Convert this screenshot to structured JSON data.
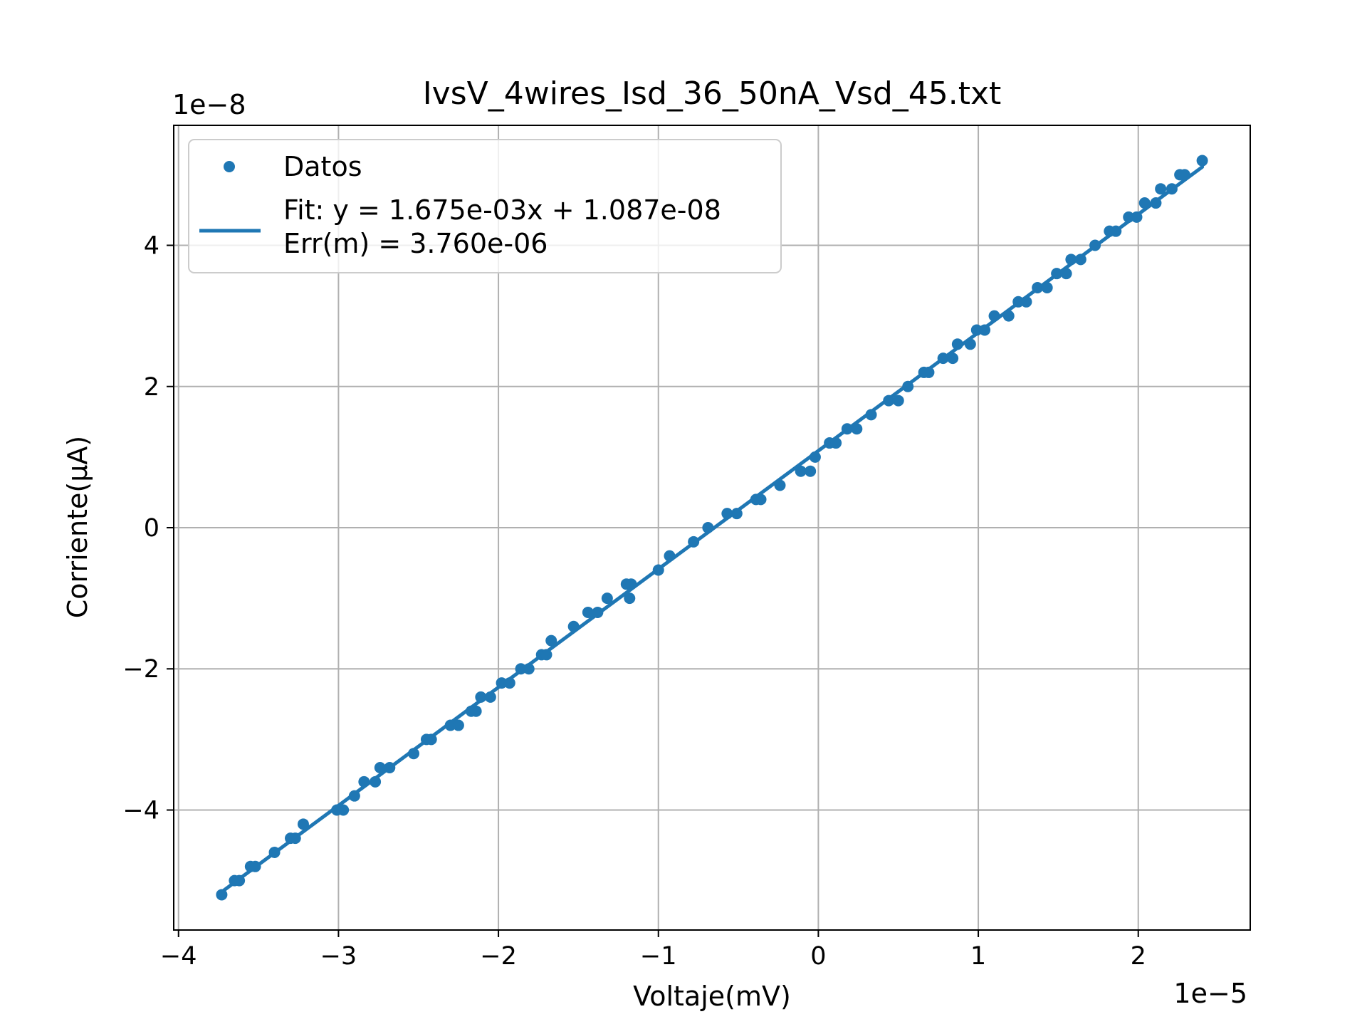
{
  "chart_data": {
    "type": "scatter",
    "title": "IvsV_4wires_Isd_36_50nA_Vsd_45.txt",
    "xlabel": "Voltaje(mV)",
    "ylabel": "Corriente(μA)",
    "x_offset_label": "1e−5",
    "y_offset_label": "1e−8",
    "x_scale": 1e-05,
    "y_scale": 1e-08,
    "xlim": [
      -4.03,
      2.7
    ],
    "ylim": [
      -5.7,
      5.7
    ],
    "xticks": [
      -4,
      -3,
      -2,
      -1,
      0,
      1,
      2
    ],
    "xtick_labels": [
      "−4",
      "−3",
      "−2",
      "−1",
      "0",
      "1",
      "2"
    ],
    "yticks": [
      -4,
      -2,
      0,
      2,
      4
    ],
    "ytick_labels": [
      "−4",
      "−2",
      "0",
      "2",
      "4"
    ],
    "grid": true,
    "legend_location": "upper left",
    "colors": {
      "series": "#1f77b4",
      "grid": "#b0b0b0",
      "axes": "#000000"
    },
    "series": [
      {
        "name": "Datos",
        "kind": "scatter",
        "points": [
          [
            -3.73,
            -5.2
          ],
          [
            -3.65,
            -5.0
          ],
          [
            -3.62,
            -5.0
          ],
          [
            -3.55,
            -4.8
          ],
          [
            -3.52,
            -4.8
          ],
          [
            -3.4,
            -4.6
          ],
          [
            -3.3,
            -4.4
          ],
          [
            -3.27,
            -4.4
          ],
          [
            -3.22,
            -4.2
          ],
          [
            -3.01,
            -4.0
          ],
          [
            -2.97,
            -4.0
          ],
          [
            -2.9,
            -3.8
          ],
          [
            -2.84,
            -3.6
          ],
          [
            -2.77,
            -3.6
          ],
          [
            -2.74,
            -3.4
          ],
          [
            -2.68,
            -3.4
          ],
          [
            -2.53,
            -3.2
          ],
          [
            -2.45,
            -3.0
          ],
          [
            -2.42,
            -3.0
          ],
          [
            -2.3,
            -2.8
          ],
          [
            -2.25,
            -2.8
          ],
          [
            -2.17,
            -2.6
          ],
          [
            -2.14,
            -2.6
          ],
          [
            -2.11,
            -2.4
          ],
          [
            -2.05,
            -2.4
          ],
          [
            -1.98,
            -2.2
          ],
          [
            -1.93,
            -2.2
          ],
          [
            -1.86,
            -2.0
          ],
          [
            -1.81,
            -2.0
          ],
          [
            -1.73,
            -1.8
          ],
          [
            -1.7,
            -1.8
          ],
          [
            -1.67,
            -1.6
          ],
          [
            -1.53,
            -1.4
          ],
          [
            -1.44,
            -1.2
          ],
          [
            -1.38,
            -1.2
          ],
          [
            -1.32,
            -1.0
          ],
          [
            -1.2,
            -0.8
          ],
          [
            -1.18,
            -1.0
          ],
          [
            -1.17,
            -0.8
          ],
          [
            -1.0,
            -0.6
          ],
          [
            -0.93,
            -0.4
          ],
          [
            -0.78,
            -0.2
          ],
          [
            -0.69,
            0.0
          ],
          [
            -0.57,
            0.2
          ],
          [
            -0.51,
            0.2
          ],
          [
            -0.39,
            0.4
          ],
          [
            -0.36,
            0.4
          ],
          [
            -0.24,
            0.6
          ],
          [
            -0.11,
            0.8
          ],
          [
            -0.05,
            0.8
          ],
          [
            -0.02,
            1.0
          ],
          [
            0.07,
            1.2
          ],
          [
            0.11,
            1.2
          ],
          [
            0.18,
            1.4
          ],
          [
            0.24,
            1.4
          ],
          [
            0.33,
            1.6
          ],
          [
            0.44,
            1.8
          ],
          [
            0.5,
            1.8
          ],
          [
            0.56,
            2.0
          ],
          [
            0.66,
            2.2
          ],
          [
            0.69,
            2.2
          ],
          [
            0.78,
            2.4
          ],
          [
            0.84,
            2.4
          ],
          [
            0.87,
            2.6
          ],
          [
            0.95,
            2.6
          ],
          [
            0.99,
            2.8
          ],
          [
            1.04,
            2.8
          ],
          [
            1.1,
            3.0
          ],
          [
            1.19,
            3.0
          ],
          [
            1.25,
            3.2
          ],
          [
            1.3,
            3.2
          ],
          [
            1.37,
            3.4
          ],
          [
            1.43,
            3.4
          ],
          [
            1.49,
            3.6
          ],
          [
            1.55,
            3.6
          ],
          [
            1.58,
            3.8
          ],
          [
            1.64,
            3.8
          ],
          [
            1.73,
            4.0
          ],
          [
            1.82,
            4.2
          ],
          [
            1.86,
            4.2
          ],
          [
            1.94,
            4.4
          ],
          [
            1.99,
            4.4
          ],
          [
            2.04,
            4.6
          ],
          [
            2.11,
            4.6
          ],
          [
            2.14,
            4.8
          ],
          [
            2.21,
            4.8
          ],
          [
            2.26,
            5.0
          ],
          [
            2.29,
            5.0
          ],
          [
            2.4,
            5.2
          ]
        ]
      },
      {
        "name": "Fit: y = 1.675e-03x + 1.087e-08\nErr(m) = 3.760e-06",
        "kind": "line",
        "x": [
          -3.73,
          2.4
        ],
        "y": [
          -5.16,
          5.11
        ]
      }
    ]
  }
}
